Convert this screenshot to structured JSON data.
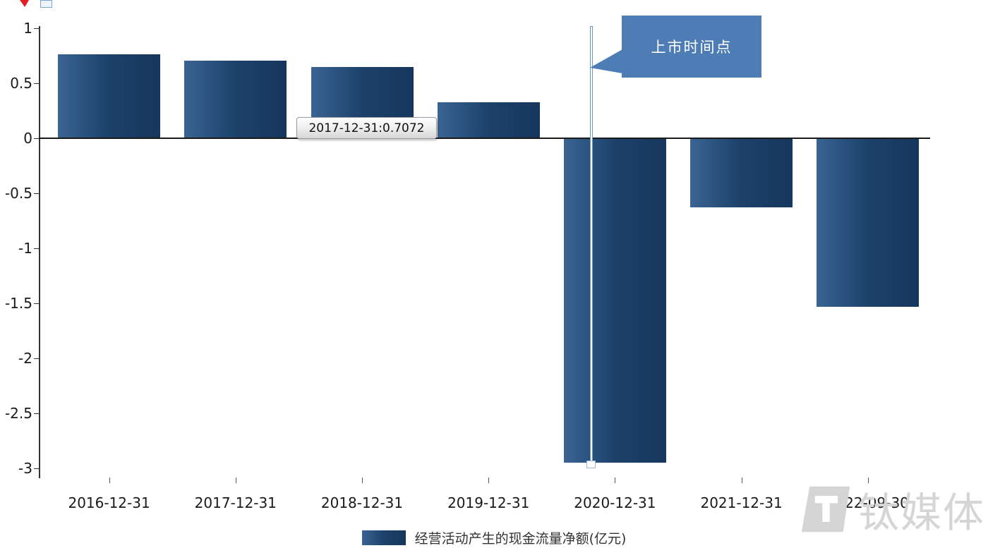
{
  "chart_data": {
    "type": "bar",
    "categories": [
      "2016-12-31",
      "2017-12-31",
      "2018-12-31",
      "2019-12-31",
      "2020-12-31",
      "2021-12-31",
      "2022-09-30"
    ],
    "values": [
      0.76,
      0.7072,
      0.65,
      0.33,
      -2.95,
      -0.63,
      -1.53
    ],
    "series_name": "经营活动产生的现金流量净额(亿元)",
    "title": "",
    "xlabel": "",
    "ylabel": "",
    "ylim": [
      -3,
      1
    ],
    "yticks": [
      1,
      0.5,
      0,
      -0.5,
      -1,
      -1.5,
      -2,
      -2.5,
      -3
    ],
    "grid": false,
    "legend_position": "bottom",
    "bar_gradient": [
      "#3a6493",
      "#1c416a",
      "#16375d"
    ]
  },
  "legend": {
    "label": "经营活动产生的现金流量净额(亿元)"
  },
  "tooltip": {
    "text": "2017-12-31:0.7072"
  },
  "annotation": {
    "label": "上市时间点",
    "target_category": "2020-12-31"
  },
  "watermark": {
    "text": "钛媒体"
  },
  "colors": {
    "callout": "#4d7db4",
    "axis": "#1a1a1a"
  }
}
